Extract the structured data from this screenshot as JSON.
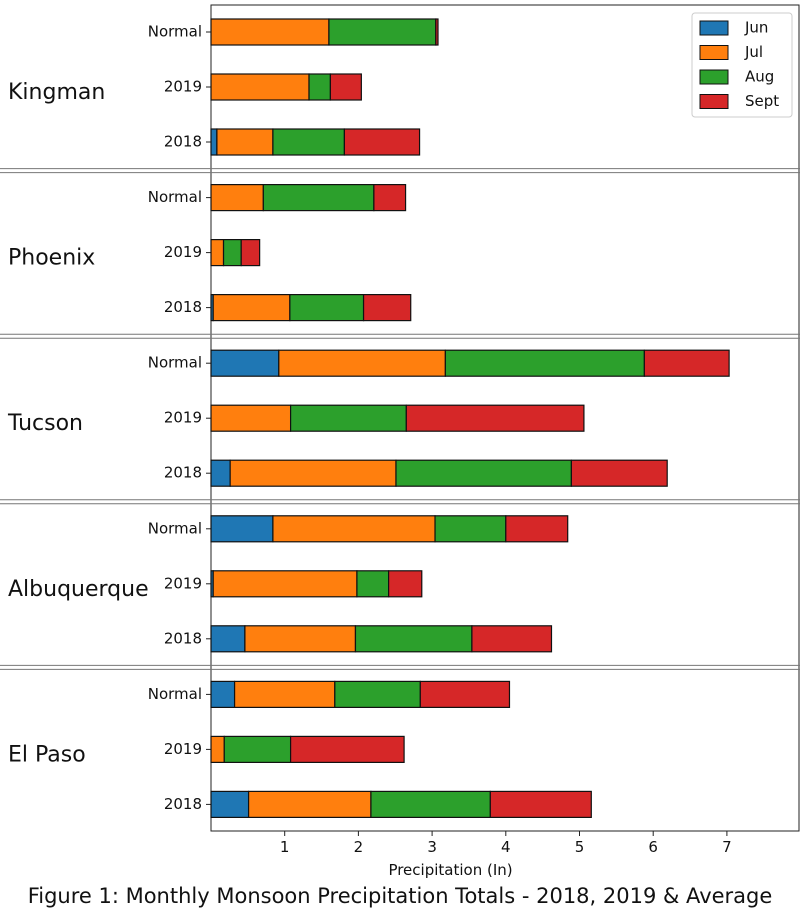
{
  "figure": {
    "caption": "Figure 1: Monthly Monsoon Precipitation Totals - 2018, 2019 & Average"
  },
  "chart_data": {
    "type": "bar",
    "orientation": "horizontal",
    "stacked": true,
    "xlabel": "Precipitation (In)",
    "xlim": [
      0,
      8
    ],
    "xticks": [
      1,
      2,
      3,
      4,
      5,
      6,
      7
    ],
    "legend": {
      "placement": "top-right",
      "entries": [
        "Jun",
        "Jul",
        "Aug",
        "Sept"
      ]
    },
    "series_colors": {
      "Jun": "#1f77b4",
      "Jul": "#ff7f0e",
      "Aug": "#2ca02c",
      "Sept": "#d62728"
    },
    "grid": false,
    "groups": [
      {
        "city": "Kingman",
        "rows": [
          {
            "label": "Normal",
            "values": [
              0.0,
              1.6,
              1.45,
              0.03
            ]
          },
          {
            "label": "2019",
            "values": [
              0.0,
              1.33,
              0.29,
              0.42
            ]
          },
          {
            "label": "2018",
            "values": [
              0.08,
              0.76,
              0.97,
              1.02
            ]
          }
        ]
      },
      {
        "city": "Phoenix",
        "rows": [
          {
            "label": "Normal",
            "values": [
              0.0,
              0.71,
              1.5,
              0.43
            ]
          },
          {
            "label": "2019",
            "values": [
              0.0,
              0.17,
              0.24,
              0.25
            ]
          },
          {
            "label": "2018",
            "values": [
              0.03,
              1.04,
              1.0,
              0.64
            ]
          }
        ]
      },
      {
        "city": "Tucson",
        "rows": [
          {
            "label": "Normal",
            "values": [
              0.92,
              2.26,
              2.7,
              1.15
            ]
          },
          {
            "label": "2019",
            "values": [
              0.0,
              1.08,
              1.57,
              2.41
            ]
          },
          {
            "label": "2018",
            "values": [
              0.26,
              2.25,
              2.38,
              1.3
            ]
          }
        ]
      },
      {
        "city": "Albuquerque",
        "rows": [
          {
            "label": "Normal",
            "values": [
              0.84,
              2.2,
              0.96,
              0.84
            ]
          },
          {
            "label": "2019",
            "values": [
              0.03,
              1.95,
              0.43,
              0.45
            ]
          },
          {
            "label": "2018",
            "values": [
              0.46,
              1.5,
              1.58,
              1.08
            ]
          }
        ]
      },
      {
        "city": "El Paso",
        "rows": [
          {
            "label": "Normal",
            "values": [
              0.32,
              1.36,
              1.16,
              1.21
            ]
          },
          {
            "label": "2019",
            "values": [
              0.0,
              0.18,
              0.9,
              1.54
            ]
          },
          {
            "label": "2018",
            "values": [
              0.51,
              1.66,
              1.62,
              1.37
            ]
          }
        ]
      }
    ]
  }
}
